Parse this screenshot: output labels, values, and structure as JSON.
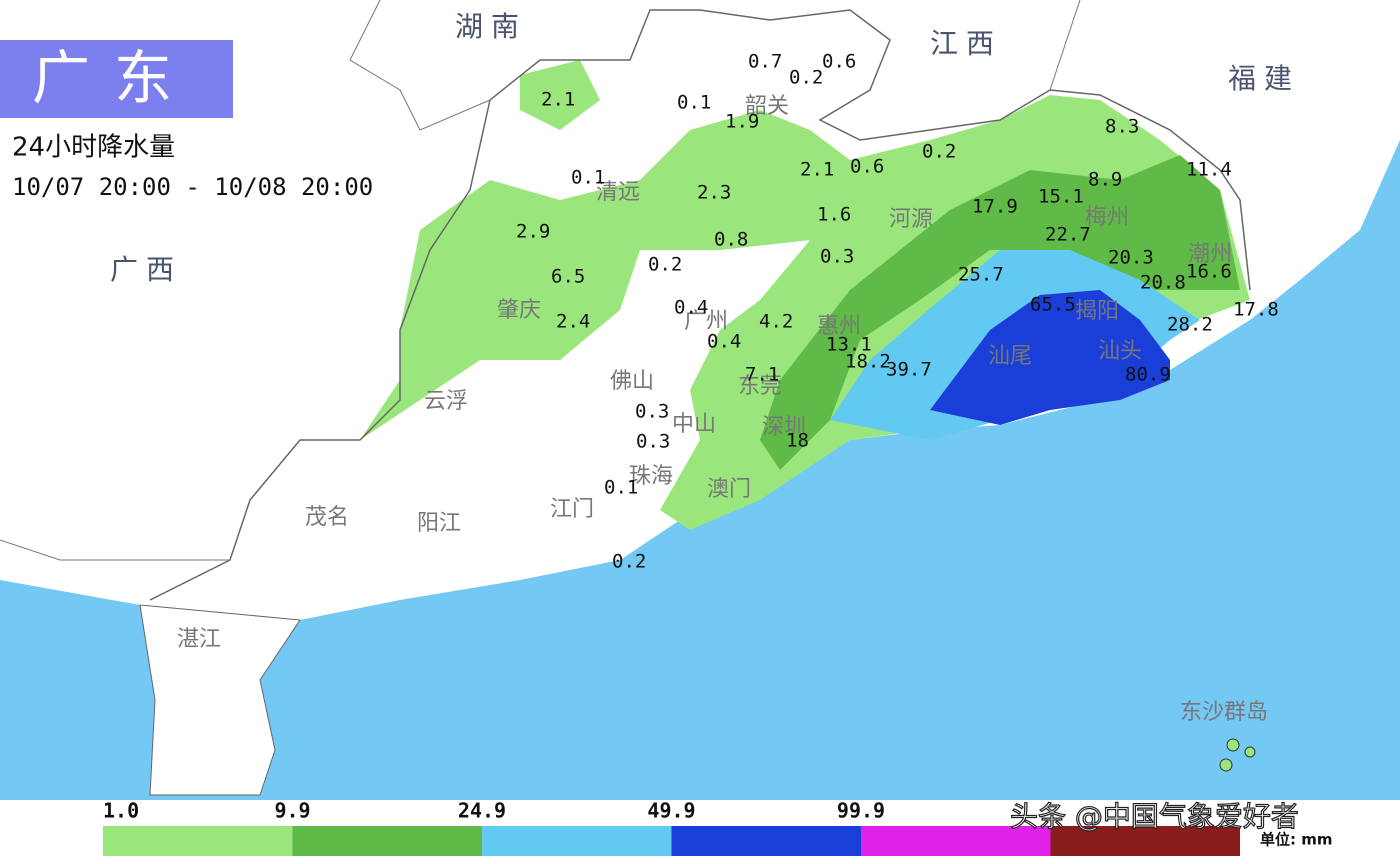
{
  "header": {
    "title": "广东",
    "subtitle": "24小时降水量",
    "period": "10/07 20:00 - 10/08 20:00"
  },
  "neighbors": [
    "湖南",
    "江西",
    "福建",
    "广西"
  ],
  "cities": [
    "韶关",
    "清远",
    "河源",
    "梅州",
    "潮州",
    "肇庆",
    "广州",
    "惠州",
    "揭阳",
    "汕尾",
    "汕头",
    "佛山",
    "东莞",
    "云浮",
    "中山",
    "深圳",
    "珠海",
    "澳门",
    "茂名",
    "阳江",
    "江门",
    "湛江",
    "东沙群岛"
  ],
  "stations": [
    0.7,
    0.6,
    0.2,
    2.1,
    0.1,
    1.9,
    2.1,
    0.6,
    0.2,
    8.3,
    0.1,
    2.3,
    8.9,
    11.4,
    17.9,
    15.1,
    1.6,
    2.9,
    0.8,
    22.7,
    0.3,
    0.2,
    20.3,
    16.6,
    6.5,
    25.7,
    20.8,
    65.5,
    0.4,
    17.8,
    2.4,
    4.2,
    28.2,
    13.1,
    0.4,
    18.2,
    39.7,
    7.1,
    0.3,
    0.3,
    18,
    0.1,
    80.9,
    0.2
  ],
  "legend": {
    "thresholds": [
      {
        "value": 1,
        "label": "1.0"
      },
      9.9,
      24.9,
      49.9,
      99.9
    ],
    "colors": [
      "#9ae67c",
      "#5fba48",
      "#62c9f2",
      "#1a3fd8",
      "#de22ea",
      "#8b1c1c"
    ],
    "unit": "单位: mm"
  },
  "watermark": "头条 @中国气象爱好者"
}
